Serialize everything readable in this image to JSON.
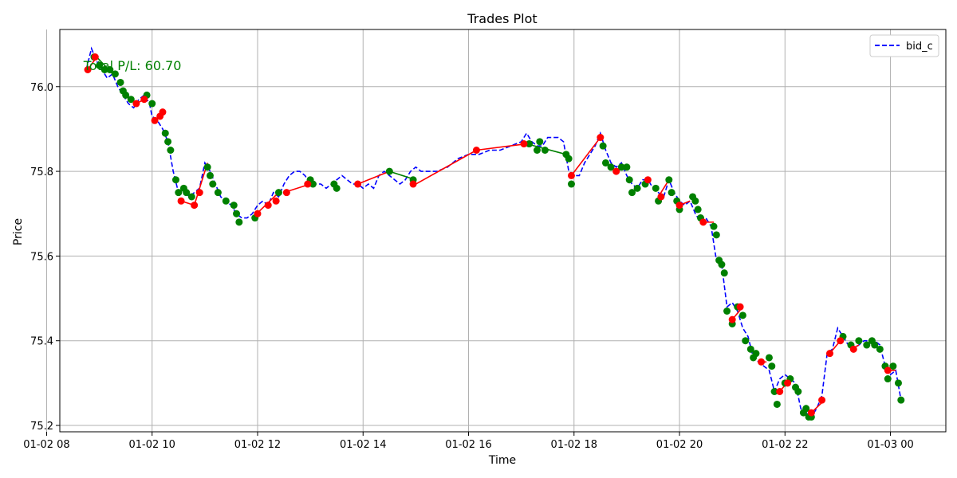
{
  "chart_data": {
    "type": "line",
    "title": "Trades Plot",
    "xlabel": "Time",
    "ylabel": "Price",
    "grid": true,
    "legend_position": "top-right",
    "x_unit": "hours since 2024-01-02 00:00",
    "xlim": [
      8.25,
      25.05
    ],
    "ylim": [
      75.185,
      76.135
    ],
    "x_ticks": [
      {
        "value": 8,
        "label": "01-02 08"
      },
      {
        "value": 10,
        "label": "01-02 10"
      },
      {
        "value": 12,
        "label": "01-02 12"
      },
      {
        "value": 14,
        "label": "01-02 14"
      },
      {
        "value": 16,
        "label": "01-02 16"
      },
      {
        "value": 18,
        "label": "01-02 18"
      },
      {
        "value": 20,
        "label": "01-02 20"
      },
      {
        "value": 22,
        "label": "01-02 22"
      },
      {
        "value": 24,
        "label": "01-03 00"
      }
    ],
    "y_ticks": [
      {
        "value": 75.2,
        "label": "75.2"
      },
      {
        "value": 75.4,
        "label": "75.4"
      },
      {
        "value": 75.6,
        "label": "75.6"
      },
      {
        "value": 75.8,
        "label": "75.8"
      },
      {
        "value": 76.0,
        "label": "76.0"
      }
    ],
    "annotation": {
      "text": "Total P/L: 60.70",
      "x": 8.7,
      "y": 76.05,
      "color": "#008000"
    },
    "series": [
      {
        "name": "bid_c",
        "style": "dashed",
        "color": "#0000ff",
        "x": [
          8.75,
          8.85,
          8.95,
          9.05,
          9.15,
          9.25,
          9.35,
          9.45,
          9.55,
          9.65,
          9.75,
          9.85,
          9.95,
          10.0,
          10.1,
          10.2,
          10.3,
          10.4,
          10.5,
          10.6,
          10.7,
          10.8,
          10.9,
          11.0,
          11.1,
          11.2,
          11.3,
          11.4,
          11.5,
          11.6,
          11.7,
          11.8,
          11.9,
          12.0,
          12.1,
          12.2,
          12.3,
          12.4,
          12.5,
          12.6,
          12.7,
          12.8,
          12.9,
          13.0,
          13.1,
          13.2,
          13.3,
          13.4,
          13.5,
          13.6,
          13.7,
          13.8,
          13.9,
          14.0,
          14.1,
          14.2,
          14.3,
          14.4,
          14.5,
          14.6,
          14.7,
          14.8,
          14.9,
          15.0,
          15.1,
          15.2,
          15.3,
          15.4,
          15.6,
          15.8,
          16.0,
          16.2,
          16.4,
          16.6,
          16.8,
          17.0,
          17.1,
          17.2,
          17.3,
          17.4,
          17.5,
          17.6,
          17.7,
          17.8,
          17.9,
          18.0,
          18.1,
          18.2,
          18.3,
          18.4,
          18.5,
          18.6,
          18.7,
          18.8,
          18.9,
          19.0,
          19.1,
          19.2,
          19.3,
          19.4,
          19.5,
          19.6,
          19.7,
          19.8,
          19.9,
          20.0,
          20.1,
          20.2,
          20.3,
          20.4,
          20.5,
          20.6,
          20.7,
          20.8,
          20.9,
          21.0,
          21.1,
          21.2,
          21.3,
          21.4,
          21.5,
          21.6,
          21.7,
          21.8,
          21.9,
          22.0,
          22.1,
          22.2,
          22.3,
          22.4,
          22.5,
          22.6,
          22.7,
          22.8,
          22.9,
          23.0,
          23.1,
          23.2,
          23.3,
          23.4,
          23.5,
          23.6,
          23.7,
          23.8,
          23.9,
          24.0,
          24.1,
          24.2
        ],
        "values": [
          76.04,
          76.09,
          76.06,
          76.04,
          76.02,
          76.03,
          76.0,
          75.98,
          75.96,
          75.95,
          75.97,
          75.98,
          75.96,
          75.93,
          75.92,
          75.9,
          75.87,
          75.8,
          75.75,
          75.76,
          75.74,
          75.75,
          75.76,
          75.82,
          75.8,
          75.77,
          75.74,
          75.73,
          75.72,
          75.7,
          75.69,
          75.69,
          75.7,
          75.72,
          75.73,
          75.72,
          75.75,
          75.74,
          75.77,
          75.79,
          75.8,
          75.8,
          75.79,
          75.77,
          75.77,
          75.77,
          75.76,
          75.77,
          75.78,
          75.79,
          75.78,
          75.77,
          75.77,
          75.76,
          75.77,
          75.76,
          75.79,
          75.8,
          75.79,
          75.78,
          75.77,
          75.78,
          75.8,
          75.81,
          75.8,
          75.8,
          75.8,
          75.8,
          75.81,
          75.83,
          75.84,
          75.84,
          75.85,
          75.85,
          75.86,
          75.87,
          75.89,
          75.87,
          75.86,
          75.86,
          75.88,
          75.88,
          75.88,
          75.87,
          75.8,
          75.79,
          75.79,
          75.82,
          75.84,
          75.86,
          75.89,
          75.85,
          75.82,
          75.81,
          75.82,
          75.79,
          75.77,
          75.76,
          75.78,
          75.78,
          75.76,
          75.75,
          75.74,
          75.78,
          75.75,
          75.73,
          75.72,
          75.73,
          75.7,
          75.68,
          75.69,
          75.67,
          75.59,
          75.58,
          75.48,
          75.49,
          75.47,
          75.43,
          75.41,
          75.36,
          75.35,
          75.34,
          75.33,
          75.28,
          75.31,
          75.32,
          75.31,
          75.3,
          75.24,
          75.23,
          75.22,
          75.24,
          75.27,
          75.37,
          75.38,
          75.43,
          75.41,
          75.39,
          75.38,
          75.39,
          75.4,
          75.4,
          75.4,
          75.39,
          75.34,
          75.32,
          75.33,
          75.26
        ]
      }
    ],
    "trade_segments": [
      {
        "x": [
          8.78,
          8.95
        ],
        "y": [
          76.04,
          76.07
        ],
        "color": "#ff0000"
      },
      {
        "x": [
          8.95,
          9.25
        ],
        "y": [
          76.07,
          76.03
        ],
        "color": "#008000"
      },
      {
        "x": [
          9.7,
          9.85
        ],
        "y": [
          75.96,
          75.97
        ],
        "color": "#ff0000"
      },
      {
        "x": [
          10.05,
          10.2
        ],
        "y": [
          75.92,
          75.94
        ],
        "color": "#ff0000"
      },
      {
        "x": [
          10.55,
          10.8
        ],
        "y": [
          75.73,
          75.72
        ],
        "color": "#ff0000"
      },
      {
        "x": [
          10.8,
          11.05
        ],
        "y": [
          75.72,
          75.82
        ],
        "color": "#ff0000"
      },
      {
        "x": [
          11.9,
          12.4
        ],
        "y": [
          75.69,
          75.75
        ],
        "color": "#ff0000"
      },
      {
        "x": [
          12.5,
          13.0
        ],
        "y": [
          75.75,
          75.77
        ],
        "color": "#ff0000"
      },
      {
        "x": [
          13.9,
          14.5
        ],
        "y": [
          75.77,
          75.8
        ],
        "color": "#ff0000"
      },
      {
        "x": [
          14.5,
          15.0
        ],
        "y": [
          75.8,
          75.78
        ],
        "color": "#008000"
      },
      {
        "x": [
          15.0,
          16.15
        ],
        "y": [
          75.77,
          75.85
        ],
        "color": "#ff0000"
      },
      {
        "x": [
          16.15,
          17.1
        ],
        "y": [
          75.85,
          75.865
        ],
        "color": "#ff0000"
      },
      {
        "x": [
          17.1,
          17.85
        ],
        "y": [
          75.865,
          75.84
        ],
        "color": "#008000"
      },
      {
        "x": [
          17.95,
          18.5
        ],
        "y": [
          75.79,
          75.88
        ],
        "color": "#ff0000"
      },
      {
        "x": [
          18.8,
          19.0
        ],
        "y": [
          75.8,
          75.81
        ],
        "color": "#ff0000"
      },
      {
        "x": [
          19.3,
          19.45
        ],
        "y": [
          75.77,
          75.78
        ],
        "color": "#ff0000"
      },
      {
        "x": [
          19.6,
          19.8
        ],
        "y": [
          75.74,
          75.78
        ],
        "color": "#ff0000"
      },
      {
        "x": [
          20.0,
          20.2
        ],
        "y": [
          75.72,
          75.73
        ],
        "color": "#ff0000"
      },
      {
        "x": [
          20.4,
          20.65
        ],
        "y": [
          75.68,
          75.68
        ],
        "color": "#ff0000"
      },
      {
        "x": [
          21.0,
          21.2
        ],
        "y": [
          75.45,
          75.48
        ],
        "color": "#ff0000"
      },
      {
        "x": [
          21.5,
          21.65
        ],
        "y": [
          75.35,
          75.35
        ],
        "color": "#ff0000"
      },
      {
        "x": [
          21.9,
          22.1
        ],
        "y": [
          75.28,
          75.31
        ],
        "color": "#ff0000"
      },
      {
        "x": [
          22.5,
          22.75
        ],
        "y": [
          75.23,
          75.26
        ],
        "color": "#ff0000"
      },
      {
        "x": [
          22.85,
          23.05
        ],
        "y": [
          75.37,
          75.4
        ],
        "color": "#ff0000"
      },
      {
        "x": [
          23.25,
          23.4
        ],
        "y": [
          75.38,
          75.39
        ],
        "color": "#ff0000"
      },
      {
        "x": [
          23.9,
          24.1
        ],
        "y": [
          75.33,
          75.33
        ],
        "color": "#ff0000"
      }
    ],
    "buy_markers": {
      "color": "#ff0000",
      "x": [
        8.78,
        8.92,
        9.7,
        9.85,
        10.05,
        10.15,
        10.2,
        10.55,
        10.8,
        10.9,
        12.0,
        12.2,
        12.35,
        12.55,
        12.95,
        13.9,
        14.95,
        16.15,
        17.05,
        17.95,
        18.5,
        18.8,
        19.4,
        19.65,
        20.0,
        20.45,
        21.0,
        21.15,
        21.55,
        21.9,
        22.05,
        22.5,
        22.7,
        22.85,
        23.05,
        23.3,
        23.95
      ],
      "y": [
        76.04,
        76.07,
        75.96,
        75.97,
        75.92,
        75.93,
        75.94,
        75.73,
        75.72,
        75.75,
        75.7,
        75.72,
        75.73,
        75.75,
        75.77,
        75.77,
        75.77,
        75.85,
        75.865,
        75.79,
        75.88,
        75.8,
        75.78,
        75.74,
        75.72,
        75.68,
        75.45,
        75.48,
        75.35,
        75.28,
        75.3,
        75.23,
        75.26,
        75.37,
        75.4,
        75.38,
        75.33
      ]
    },
    "sell_markers": {
      "color": "#008000",
      "x": [
        8.9,
        9.0,
        9.1,
        9.2,
        9.3,
        9.4,
        9.45,
        9.5,
        9.6,
        9.9,
        10.0,
        10.25,
        10.3,
        10.35,
        10.45,
        10.5,
        10.6,
        10.65,
        10.75,
        11.05,
        11.1,
        11.15,
        11.25,
        11.4,
        11.55,
        11.6,
        11.65,
        11.95,
        12.4,
        13.0,
        13.05,
        13.45,
        13.5,
        14.5,
        14.95,
        17.15,
        17.3,
        17.35,
        17.45,
        17.85,
        17.9,
        17.95,
        18.55,
        18.6,
        18.7,
        18.9,
        19.0,
        19.05,
        19.1,
        19.2,
        19.35,
        19.55,
        19.6,
        19.8,
        19.85,
        19.95,
        20.0,
        20.25,
        20.3,
        20.35,
        20.4,
        20.65,
        20.7,
        20.75,
        20.8,
        20.85,
        20.9,
        21.0,
        21.1,
        21.2,
        21.25,
        21.35,
        21.4,
        21.45,
        21.7,
        21.75,
        21.8,
        21.85,
        22.0,
        22.1,
        22.2,
        22.25,
        22.35,
        22.4,
        22.45,
        22.5,
        23.1,
        23.25,
        23.4,
        23.55,
        23.65,
        23.7,
        23.8,
        23.9,
        23.95,
        24.05,
        24.15,
        24.2
      ],
      "y": [
        76.07,
        76.05,
        76.04,
        76.04,
        76.03,
        76.01,
        75.99,
        75.98,
        75.97,
        75.98,
        75.96,
        75.89,
        75.87,
        75.85,
        75.78,
        75.75,
        75.76,
        75.75,
        75.74,
        75.81,
        75.79,
        75.77,
        75.75,
        75.73,
        75.72,
        75.7,
        75.68,
        75.69,
        75.75,
        75.78,
        75.77,
        75.77,
        75.76,
        75.8,
        75.78,
        75.865,
        75.85,
        75.87,
        75.85,
        75.84,
        75.83,
        75.77,
        75.86,
        75.82,
        75.81,
        75.81,
        75.81,
        75.78,
        75.75,
        75.76,
        75.77,
        75.76,
        75.73,
        75.78,
        75.75,
        75.73,
        75.71,
        75.74,
        75.73,
        75.71,
        75.69,
        75.67,
        75.65,
        75.59,
        75.58,
        75.56,
        75.47,
        75.44,
        75.48,
        75.46,
        75.4,
        75.38,
        75.36,
        75.37,
        75.36,
        75.34,
        75.28,
        75.25,
        75.3,
        75.31,
        75.29,
        75.28,
        75.23,
        75.24,
        75.22,
        75.22,
        75.41,
        75.39,
        75.4,
        75.39,
        75.4,
        75.39,
        75.38,
        75.34,
        75.31,
        75.34,
        75.3,
        75.26
      ]
    }
  }
}
